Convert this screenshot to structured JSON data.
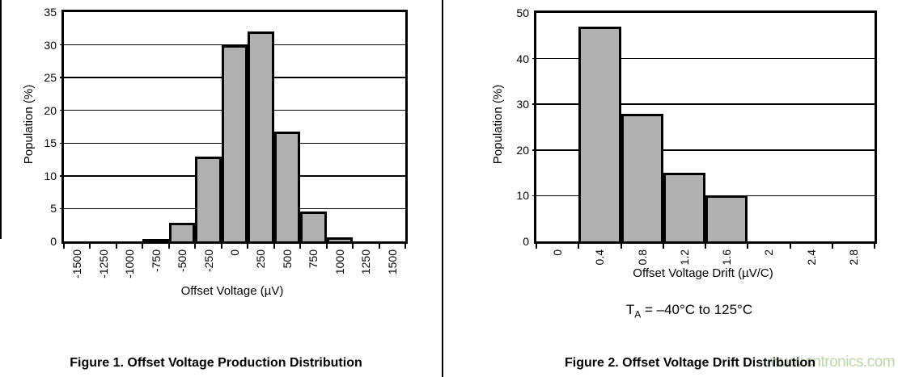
{
  "watermark": {
    "text": "www.cntronics.com",
    "color": "#b9d8a6"
  },
  "divider_color": "#000000",
  "chart_data": [
    {
      "type": "bar",
      "title": "Figure 1. Offset Voltage Production Distribution",
      "xlabel": "Offset Voltage (µV)",
      "ylabel": "Population (%)",
      "categories": [
        "-1500",
        "-1250",
        "-1000",
        "-750",
        "-500",
        "-250",
        "0",
        "250",
        "500",
        "750",
        "1000",
        "1250",
        "1500"
      ],
      "values": [
        0,
        0,
        0,
        0.2,
        2.8,
        13,
        30,
        32,
        16.8,
        4.6,
        0.6,
        0,
        0
      ],
      "ylim": [
        0,
        35
      ],
      "ytick_step": 5,
      "grid": "horizontal",
      "bar_color": "#b0b0b0",
      "legend": "none"
    },
    {
      "type": "bar",
      "title": "Figure 2. Offset Voltage Drift Distribution",
      "xlabel": "Offset Voltage Drift (µV/C)",
      "ylabel": "Population (%)",
      "categories": [
        "0",
        "0.4",
        "0.8",
        "1.2",
        "1.6",
        "2",
        "2.4",
        "2.8"
      ],
      "values": [
        0,
        47,
        28,
        15,
        10,
        0,
        0,
        0
      ],
      "ylim": [
        0,
        50
      ],
      "ytick_step": 10,
      "grid": "horizontal",
      "bar_color": "#b0b0b0",
      "legend": "none",
      "note": {
        "t": "T",
        "sub": "A",
        "rest": " = –40°C to 125°C"
      }
    }
  ]
}
